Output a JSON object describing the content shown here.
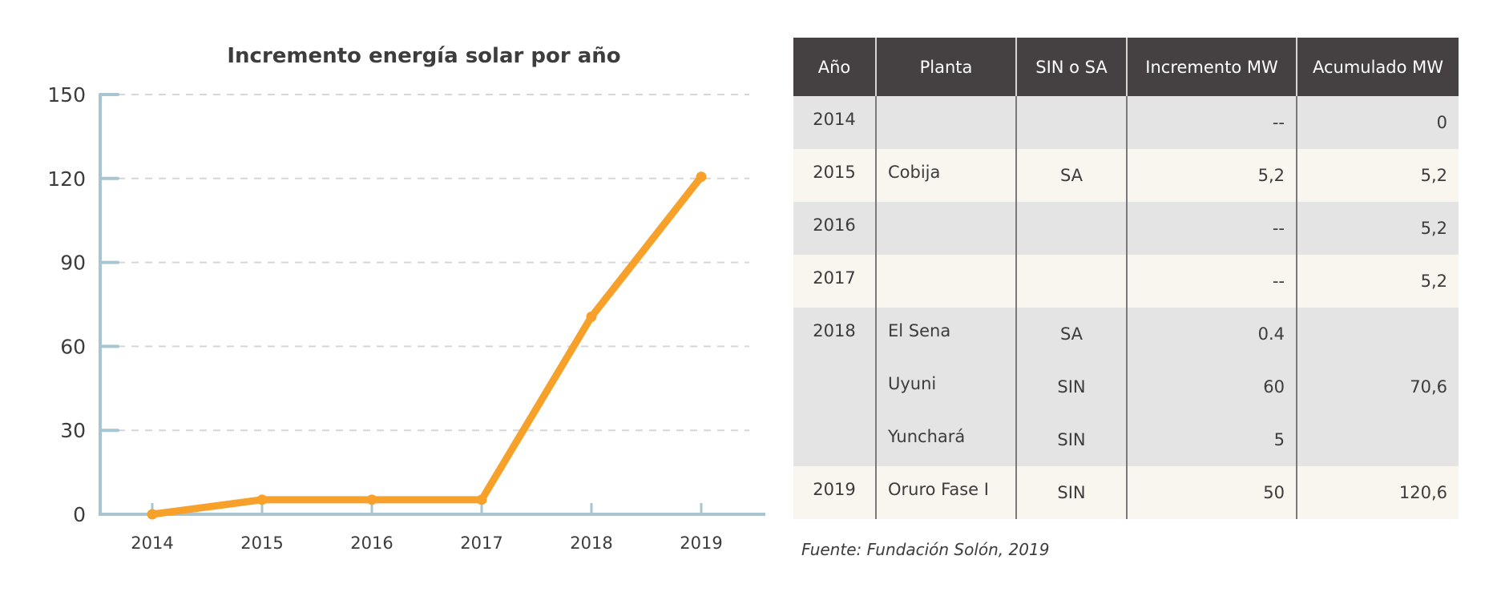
{
  "chart_data": {
    "type": "line",
    "title": "Incremento energía solar por año",
    "xlabel": "",
    "ylabel": "",
    "categories": [
      "2014",
      "2015",
      "2016",
      "2017",
      "2018",
      "2019"
    ],
    "series": [
      {
        "name": "Acumulado MW",
        "values": [
          0,
          5.2,
          5.2,
          5.2,
          70.6,
          120.6
        ],
        "color": "#f7a12b"
      }
    ],
    "ylim": [
      0,
      150
    ],
    "yticks": [
      0,
      30,
      60,
      90,
      120,
      150
    ],
    "ytick_labels": [
      "0",
      "30",
      "60",
      "90",
      "120",
      "150"
    ],
    "grid": true,
    "axis_color": "#a7c6cf",
    "grid_color": "#d6d6d6"
  },
  "table": {
    "headers": [
      "Año",
      "Planta",
      "SIN o SA",
      "Incremento MW",
      "Acumulado MW"
    ],
    "rows": [
      {
        "year": "2014",
        "plants": [
          {
            "name": "",
            "type": "",
            "increment": "--"
          }
        ],
        "cumulative": "0"
      },
      {
        "year": "2015",
        "plants": [
          {
            "name": "Cobija",
            "type": "SA",
            "increment": "5,2"
          }
        ],
        "cumulative": "5,2"
      },
      {
        "year": "2016",
        "plants": [
          {
            "name": "",
            "type": "",
            "increment": "--"
          }
        ],
        "cumulative": "5,2"
      },
      {
        "year": "2017",
        "plants": [
          {
            "name": "",
            "type": "",
            "increment": "--"
          }
        ],
        "cumulative": "5,2"
      },
      {
        "year": "2018",
        "plants": [
          {
            "name": "El Sena",
            "type": "SA",
            "increment": "0.4"
          },
          {
            "name": "Uyuni",
            "type": "SIN",
            "increment": "60"
          },
          {
            "name": "Yunchará",
            "type": "SIN",
            "increment": "5"
          }
        ],
        "cumulative": "70,6"
      },
      {
        "year": "2019",
        "plants": [
          {
            "name": "Oruro Fase I",
            "type": "SIN",
            "increment": "50"
          }
        ],
        "cumulative": "120,6"
      }
    ]
  },
  "source": "Fuente: Fundación Solón, 2019"
}
